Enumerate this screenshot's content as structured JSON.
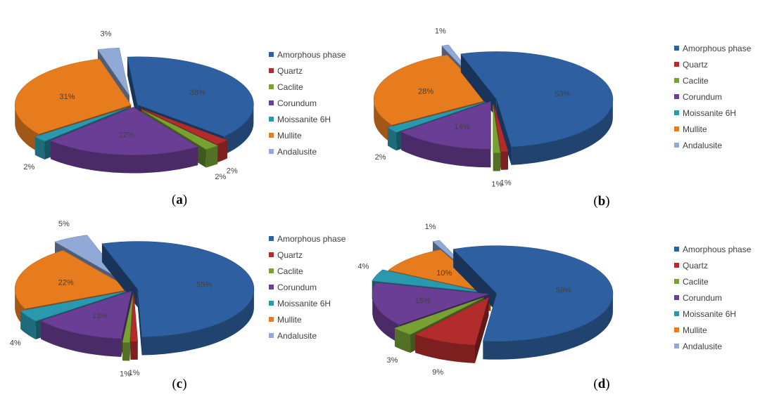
{
  "colors": {
    "Amorphous phase": "#2E5FA0",
    "Quartz": "#B22C2C",
    "Caclite": "#77A233",
    "Corundum": "#6A3E94",
    "Moissanite 6H": "#2A99B0",
    "Mullite": "#E67C1E",
    "Andalusite": "#91A9D6"
  },
  "chart_data": [
    {
      "type": "pie",
      "caption": "a",
      "legend": [
        "Amorphous phase",
        "Quartz",
        "Caclite",
        "Corundum",
        "Moissanite 6H",
        "Mullite",
        "Andalusite"
      ],
      "slices": [
        {
          "name": "Amorphous phase",
          "value": 38,
          "label": "38%"
        },
        {
          "name": "Quartz",
          "value": 2,
          "label": "2%"
        },
        {
          "name": "Caclite",
          "value": 2,
          "label": "2%"
        },
        {
          "name": "Corundum",
          "value": 22,
          "label": "22%"
        },
        {
          "name": "Moissanite 6H",
          "value": 2,
          "label": "2%"
        },
        {
          "name": "Mullite",
          "value": 31,
          "label": "31%"
        },
        {
          "name": "Andalusite",
          "value": 3,
          "label": "3%"
        }
      ]
    },
    {
      "type": "pie",
      "caption": "b",
      "legend": [
        "Amorphous phase",
        "Quartz",
        "Caclite",
        "Corundum",
        "Moissanite 6H",
        "Mullite",
        "Andalusite"
      ],
      "slices": [
        {
          "name": "Amorphous phase",
          "value": 53,
          "label": "53%"
        },
        {
          "name": "Quartz",
          "value": 1,
          "label": "1%"
        },
        {
          "name": "Caclite",
          "value": 1,
          "label": "1%"
        },
        {
          "name": "Corundum",
          "value": 14,
          "label": "14%"
        },
        {
          "name": "Moissanite 6H",
          "value": 2,
          "label": "2%"
        },
        {
          "name": "Mullite",
          "value": 28,
          "label": "28%"
        },
        {
          "name": "Andalusite",
          "value": 1,
          "label": "1%"
        }
      ]
    },
    {
      "type": "pie",
      "caption": "c",
      "legend": [
        "Amorphous phase",
        "Quartz",
        "Caclite",
        "Corundum",
        "Moissanite 6H",
        "Mullite",
        "Andalusite"
      ],
      "slices": [
        {
          "name": "Amorphous phase",
          "value": 55,
          "label": "55%"
        },
        {
          "name": "Quartz",
          "value": 1,
          "label": "1%"
        },
        {
          "name": "Caclite",
          "value": 1,
          "label": "1%"
        },
        {
          "name": "Corundum",
          "value": 13,
          "label": "13%"
        },
        {
          "name": "Moissanite 6H",
          "value": 4,
          "label": "4%"
        },
        {
          "name": "Mullite",
          "value": 22,
          "label": "22%"
        },
        {
          "name": "Andalusite",
          "value": 5,
          "label": "5%"
        }
      ]
    },
    {
      "type": "pie",
      "caption": "d",
      "legend": [
        "Amorphous phase",
        "Quartz",
        "Caclite",
        "Corundum",
        "Moissanite 6H",
        "Mullite",
        "Andalusite"
      ],
      "slices": [
        {
          "name": "Amorphous phase",
          "value": 58,
          "label": "58%"
        },
        {
          "name": "Quartz",
          "value": 9,
          "label": "9%"
        },
        {
          "name": "Caclite",
          "value": 3,
          "label": "3%"
        },
        {
          "name": "Corundum",
          "value": 15,
          "label": "15%"
        },
        {
          "name": "Moissanite 6H",
          "value": 4,
          "label": "4%"
        },
        {
          "name": "Mullite",
          "value": 10,
          "label": "10%"
        },
        {
          "name": "Andalusite",
          "value": 1,
          "label": "1%"
        }
      ]
    }
  ]
}
